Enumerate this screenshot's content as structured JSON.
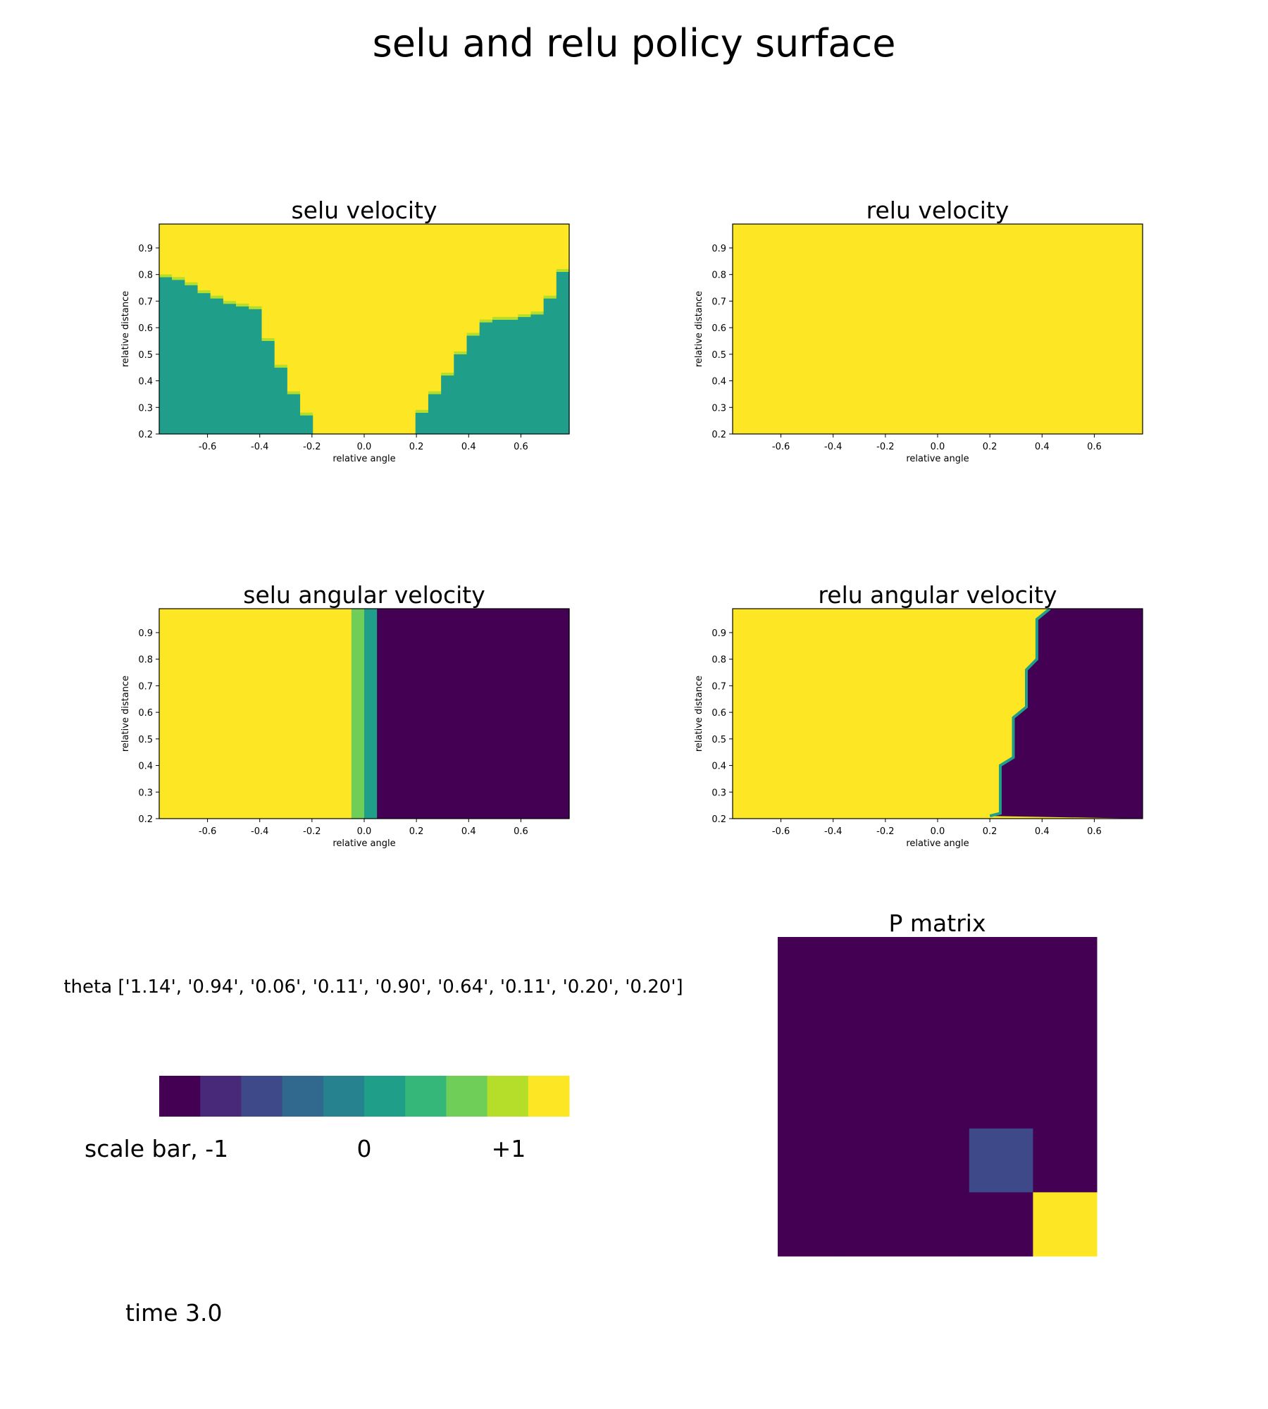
{
  "figure": {
    "title": "selu and relu policy surface",
    "theta_text": "theta ['1.14', '0.94', '0.06', '0.11', '0.90', '0.64', '0.11', '0.20', '0.20']",
    "time_text": "time 3.0",
    "scale_bar": {
      "label": "scale bar,  -1",
      "mid_label": "0",
      "max_label": "+1",
      "colors": [
        "#440154",
        "#482878",
        "#3e4989",
        "#31688e",
        "#26828e",
        "#1f9e89",
        "#35b779",
        "#6ece58",
        "#b5de2b",
        "#fde725"
      ]
    }
  },
  "colormap": [
    "#440154",
    "#482878",
    "#3e4989",
    "#31688e",
    "#26828e",
    "#1f9e89",
    "#35b779",
    "#6ece58",
    "#b5de2b",
    "#fde725"
  ],
  "chart_data": [
    {
      "type": "heatmap",
      "title": "selu velocity",
      "xlabel": "relative angle",
      "ylabel": "relative distance",
      "xlim": [
        -0.785,
        0.785
      ],
      "ylim": [
        0.2,
        0.99
      ],
      "xticks": [
        "-0.6",
        "-0.4",
        "-0.2",
        "0.0",
        "0.2",
        "0.4",
        "0.6"
      ],
      "yticks": [
        "0.2",
        "0.3",
        "0.4",
        "0.5",
        "0.6",
        "0.7",
        "0.8",
        "0.9"
      ],
      "columns": 32,
      "low_value": 0.0,
      "high_value": 1.0,
      "boundary": [
        0.79,
        0.78,
        0.76,
        0.73,
        0.71,
        0.69,
        0.68,
        0.67,
        0.55,
        0.45,
        0.35,
        0.27,
        0.2,
        0.2,
        0.2,
        0.2,
        0.2,
        0.2,
        0.2,
        0.2,
        0.28,
        0.35,
        0.42,
        0.5,
        0.57,
        0.62,
        0.63,
        0.63,
        0.64,
        0.65,
        0.71,
        0.81
      ]
    },
    {
      "type": "heatmap",
      "title": "relu velocity",
      "xlabel": "relative angle",
      "ylabel": "relative distance",
      "xlim": [
        -0.785,
        0.785
      ],
      "ylim": [
        0.2,
        0.99
      ],
      "xticks": [
        "-0.6",
        "-0.4",
        "-0.2",
        "0.0",
        "0.2",
        "0.4",
        "0.6"
      ],
      "yticks": [
        "0.2",
        "0.3",
        "0.4",
        "0.5",
        "0.6",
        "0.7",
        "0.8",
        "0.9"
      ],
      "value": 1.0
    },
    {
      "type": "heatmap",
      "title": "selu angular velocity",
      "xlabel": "relative angle",
      "ylabel": "relative distance",
      "xlim": [
        -0.785,
        0.785
      ],
      "ylim": [
        0.2,
        0.99
      ],
      "xticks": [
        "-0.6",
        "-0.4",
        "-0.2",
        "0.0",
        "0.2",
        "0.4",
        "0.6"
      ],
      "yticks": [
        "0.2",
        "0.3",
        "0.4",
        "0.5",
        "0.6",
        "0.7",
        "0.8",
        "0.9"
      ],
      "columns": 32,
      "column_values": [
        1,
        1,
        1,
        1,
        1,
        1,
        1,
        1,
        1,
        1,
        1,
        1,
        1,
        0.97,
        0.9,
        0.5,
        0.08,
        -1,
        -1,
        -1,
        -1,
        -1,
        -1,
        -1,
        -1,
        -1,
        -1,
        -1,
        -1,
        -1,
        -1,
        -1
      ]
    },
    {
      "type": "heatmap",
      "title": "relu angular velocity",
      "xlabel": "relative angle",
      "ylabel": "relative distance",
      "xlim": [
        -0.785,
        0.785
      ],
      "ylim": [
        0.2,
        0.99
      ],
      "xticks": [
        "-0.6",
        "-0.4",
        "-0.2",
        "0.0",
        "0.2",
        "0.4",
        "0.6"
      ],
      "yticks": [
        "0.2",
        "0.3",
        "0.4",
        "0.5",
        "0.6",
        "0.7",
        "0.8",
        "0.9"
      ],
      "low_value": 1.0,
      "high_value": -1.0,
      "boundary_points": [
        [
          0.2,
          0.21
        ],
        [
          0.24,
          0.22
        ],
        [
          0.24,
          0.4
        ],
        [
          0.29,
          0.43
        ],
        [
          0.29,
          0.58
        ],
        [
          0.34,
          0.62
        ],
        [
          0.34,
          0.76
        ],
        [
          0.38,
          0.8
        ],
        [
          0.38,
          0.95
        ],
        [
          0.43,
          0.99
        ]
      ]
    },
    {
      "type": "heatmap",
      "title": "P matrix",
      "rows": 5,
      "cols": 5,
      "values": [
        [
          0,
          0,
          0,
          0,
          0
        ],
        [
          0,
          0,
          0,
          0,
          0
        ],
        [
          0,
          0,
          0,
          0,
          0
        ],
        [
          0,
          0,
          0,
          0.2,
          0
        ],
        [
          0,
          0,
          0,
          0,
          1
        ]
      ]
    }
  ]
}
